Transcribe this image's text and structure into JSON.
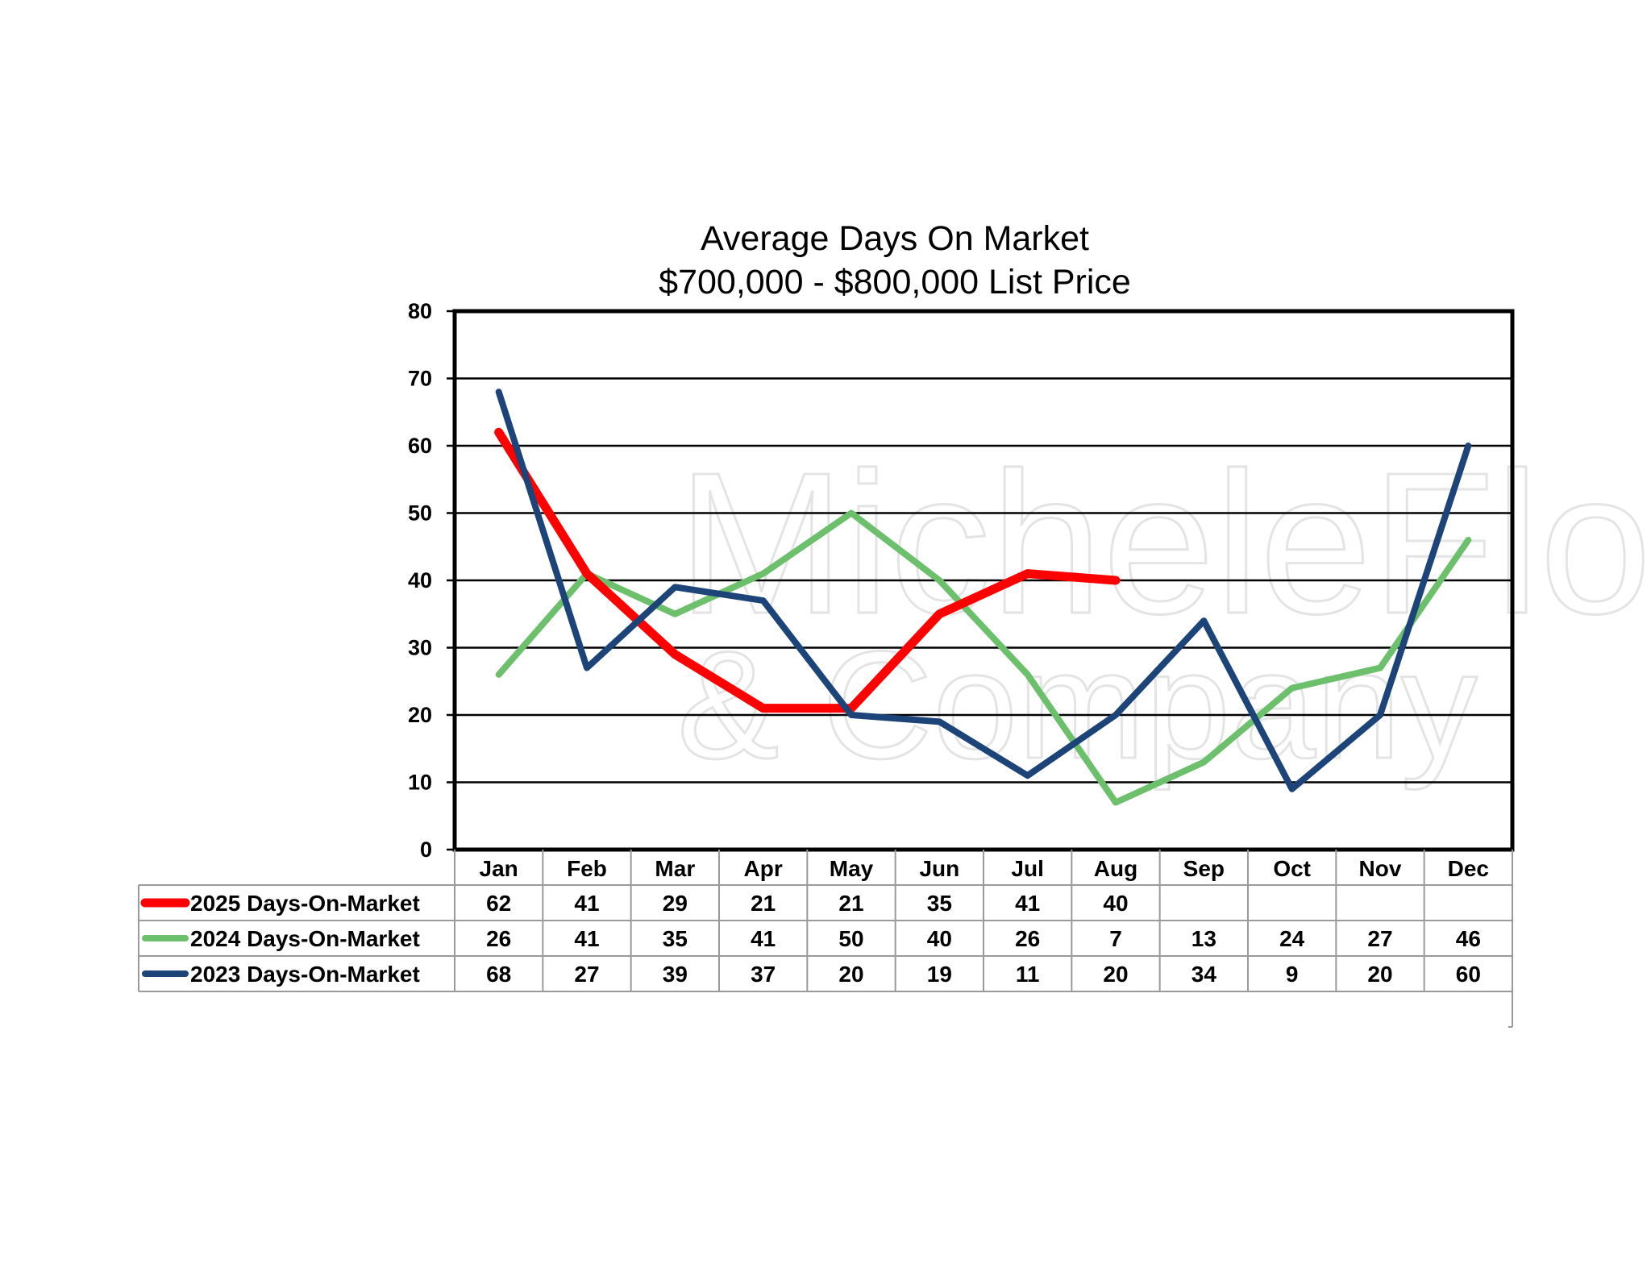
{
  "chart_data": {
    "type": "line",
    "title": "Average Days On Market",
    "subtitle": "$700,000 - $800,000 List Price",
    "categories": [
      "Jan",
      "Feb",
      "Mar",
      "Apr",
      "May",
      "Jun",
      "Jul",
      "Aug",
      "Sep",
      "Oct",
      "Nov",
      "Dec"
    ],
    "ylim": [
      0,
      80
    ],
    "yticks": [
      0,
      10,
      20,
      30,
      40,
      50,
      60,
      70,
      80
    ],
    "grid": true,
    "legend_position": "data-table-below",
    "series": [
      {
        "name": "2025 Days-On-Market",
        "color": "#ff0000",
        "values": [
          62,
          41,
          29,
          21,
          21,
          35,
          41,
          40,
          null,
          null,
          null,
          null
        ]
      },
      {
        "name": "2024 Days-On-Market",
        "color": "#6cc06c",
        "values": [
          26,
          41,
          35,
          41,
          50,
          40,
          26,
          7,
          13,
          24,
          27,
          46
        ]
      },
      {
        "name": "2023 Days-On-Market",
        "color": "#1c4478",
        "values": [
          68,
          27,
          39,
          37,
          20,
          19,
          11,
          20,
          34,
          9,
          20,
          60
        ]
      }
    ]
  },
  "watermark": {
    "line1": "MicheleFlory",
    "line2": "& Company"
  }
}
